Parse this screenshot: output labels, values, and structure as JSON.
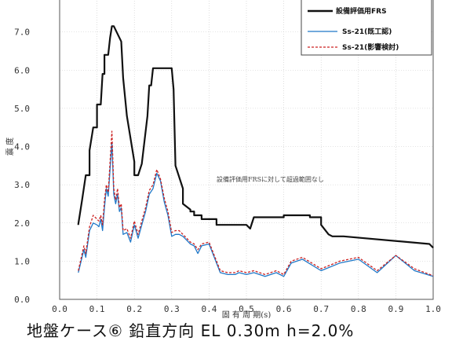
{
  "caption": "地盤ケース⑥ 鉛直方向 EL 0.30m h=2.0%",
  "chart_data": {
    "type": "line",
    "xlabel": "固 有 周 期(s)",
    "ylabel": "震 度",
    "xlim": [
      0.0,
      1.0
    ],
    "ylim": [
      0.0,
      8.0
    ],
    "x_ticks": [
      "0.0",
      "0.1",
      "0.2",
      "0.3",
      "0.4",
      "0.5",
      "0.6",
      "0.7",
      "0.8",
      "0.9",
      "1.0"
    ],
    "y_ticks": [
      "0.0",
      "1.0",
      "2.0",
      "3.0",
      "4.0",
      "5.0",
      "6.0",
      "7.0"
    ],
    "grid": true,
    "legend": "top-right",
    "annotation": "設備評価用FRSに対して超過範囲なし",
    "series": [
      {
        "name": "設備評価用FRS",
        "color": "#111111",
        "style": "solid",
        "x": [
          0.05,
          0.05,
          0.06,
          0.07,
          0.08,
          0.08,
          0.09,
          0.1,
          0.1,
          0.11,
          0.115,
          0.12,
          0.12,
          0.13,
          0.135,
          0.14,
          0.145,
          0.165,
          0.17,
          0.18,
          0.2,
          0.2,
          0.21,
          0.22,
          0.235,
          0.24,
          0.245,
          0.25,
          0.3,
          0.305,
          0.31,
          0.33,
          0.33,
          0.35,
          0.35,
          0.36,
          0.36,
          0.38,
          0.38,
          0.42,
          0.42,
          0.5,
          0.51,
          0.52,
          0.6,
          0.6,
          0.67,
          0.67,
          0.7,
          0.7,
          0.72,
          0.73,
          0.75,
          0.76,
          0.99,
          1.0
        ],
        "y": [
          1.95,
          1.97,
          2.6,
          3.25,
          3.25,
          3.9,
          4.5,
          4.5,
          5.1,
          5.1,
          5.9,
          5.9,
          6.4,
          6.4,
          6.85,
          7.15,
          7.15,
          6.75,
          5.8,
          4.8,
          3.6,
          3.25,
          3.25,
          3.55,
          4.8,
          5.6,
          5.6,
          6.05,
          6.05,
          5.5,
          3.5,
          2.9,
          2.5,
          2.35,
          2.3,
          2.3,
          2.2,
          2.2,
          2.1,
          2.1,
          1.95,
          1.95,
          1.85,
          2.15,
          2.15,
          2.2,
          2.2,
          2.15,
          2.15,
          1.95,
          1.7,
          1.65,
          1.65,
          1.65,
          1.45,
          1.35
        ]
      },
      {
        "name": "Ss-21(既工認)",
        "color": "#1f78c8",
        "style": "solid",
        "x": [
          0.05,
          0.065,
          0.07,
          0.08,
          0.09,
          0.1,
          0.105,
          0.11,
          0.115,
          0.12,
          0.125,
          0.13,
          0.14,
          0.145,
          0.15,
          0.155,
          0.16,
          0.165,
          0.17,
          0.18,
          0.19,
          0.2,
          0.21,
          0.22,
          0.23,
          0.24,
          0.25,
          0.26,
          0.27,
          0.28,
          0.29,
          0.3,
          0.31,
          0.32,
          0.33,
          0.35,
          0.36,
          0.37,
          0.38,
          0.4,
          0.43,
          0.45,
          0.47,
          0.48,
          0.5,
          0.52,
          0.55,
          0.58,
          0.6,
          0.62,
          0.65,
          0.7,
          0.75,
          0.8,
          0.85,
          0.9,
          0.95,
          1.0
        ],
        "y": [
          0.7,
          1.3,
          1.1,
          1.8,
          2.0,
          1.95,
          1.9,
          2.1,
          1.8,
          2.4,
          2.9,
          2.7,
          4.1,
          2.75,
          2.5,
          2.75,
          2.3,
          2.4,
          1.7,
          1.75,
          1.5,
          1.95,
          1.6,
          1.95,
          2.3,
          2.75,
          2.9,
          3.3,
          3.1,
          2.55,
          2.2,
          1.65,
          1.7,
          1.7,
          1.65,
          1.45,
          1.4,
          1.2,
          1.4,
          1.45,
          0.7,
          0.65,
          0.65,
          0.7,
          0.65,
          0.7,
          0.6,
          0.7,
          0.6,
          0.95,
          1.05,
          0.75,
          0.95,
          1.05,
          0.7,
          1.15,
          0.75,
          0.6
        ]
      },
      {
        "name": "Ss-21(影響検討)",
        "color": "#cc2222",
        "style": "dashed",
        "x": [
          0.05,
          0.065,
          0.07,
          0.08,
          0.09,
          0.1,
          0.105,
          0.11,
          0.115,
          0.12,
          0.125,
          0.13,
          0.14,
          0.145,
          0.15,
          0.155,
          0.16,
          0.165,
          0.17,
          0.18,
          0.19,
          0.2,
          0.21,
          0.22,
          0.23,
          0.24,
          0.25,
          0.26,
          0.27,
          0.28,
          0.29,
          0.3,
          0.31,
          0.32,
          0.33,
          0.35,
          0.36,
          0.37,
          0.38,
          0.4,
          0.43,
          0.45,
          0.47,
          0.48,
          0.5,
          0.52,
          0.55,
          0.58,
          0.6,
          0.62,
          0.65,
          0.7,
          0.75,
          0.8,
          0.85,
          0.9,
          0.95,
          1.0
        ],
        "y": [
          0.75,
          1.4,
          1.2,
          1.9,
          2.2,
          2.1,
          2.05,
          2.2,
          1.95,
          2.6,
          3.0,
          2.8,
          4.4,
          2.9,
          2.6,
          2.9,
          2.4,
          2.5,
          1.8,
          1.85,
          1.6,
          2.05,
          1.7,
          2.05,
          2.4,
          2.85,
          3.0,
          3.4,
          3.15,
          2.65,
          2.3,
          1.75,
          1.8,
          1.8,
          1.7,
          1.5,
          1.45,
          1.3,
          1.45,
          1.5,
          0.75,
          0.7,
          0.7,
          0.75,
          0.7,
          0.75,
          0.65,
          0.75,
          0.65,
          1.0,
          1.1,
          0.8,
          1.0,
          1.1,
          0.75,
          1.15,
          0.8,
          0.62
        ]
      }
    ]
  }
}
